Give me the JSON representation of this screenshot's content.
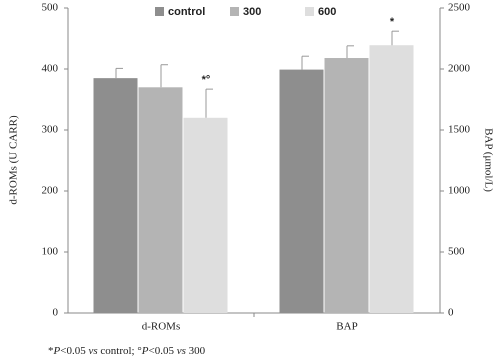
{
  "chart_data": {
    "type": "bar",
    "categories": [
      "d-ROMs",
      "BAP"
    ],
    "category_axes": [
      "y",
      "y2"
    ],
    "y_label": "d-ROMs  (U CARR)",
    "y2_label": "BAP (μmol/L)",
    "ylim": [
      0,
      500
    ],
    "yticks": [
      0,
      100,
      200,
      300,
      400,
      500
    ],
    "y2lim": [
      0,
      2500
    ],
    "y2ticks": [
      0,
      500,
      1000,
      1500,
      2000,
      2500
    ],
    "legend": "top",
    "series": [
      {
        "name": "control",
        "color": "#8e8e8e",
        "values": [
          385,
          1995
        ],
        "errors": [
          16,
          110
        ]
      },
      {
        "name": "300",
        "color": "#b4b4b4",
        "values": [
          370,
          2090
        ],
        "errors": [
          37,
          100
        ]
      },
      {
        "name": "600",
        "color": "#dedede",
        "values": [
          320,
          2195
        ],
        "errors": [
          47,
          115
        ],
        "annotations": [
          "*°",
          "*"
        ]
      }
    ],
    "footnote": [
      "*",
      "P",
      "<0.05 ",
      "vs",
      " control; °",
      "P",
      "<0.05 ",
      "vs",
      " 300"
    ]
  }
}
